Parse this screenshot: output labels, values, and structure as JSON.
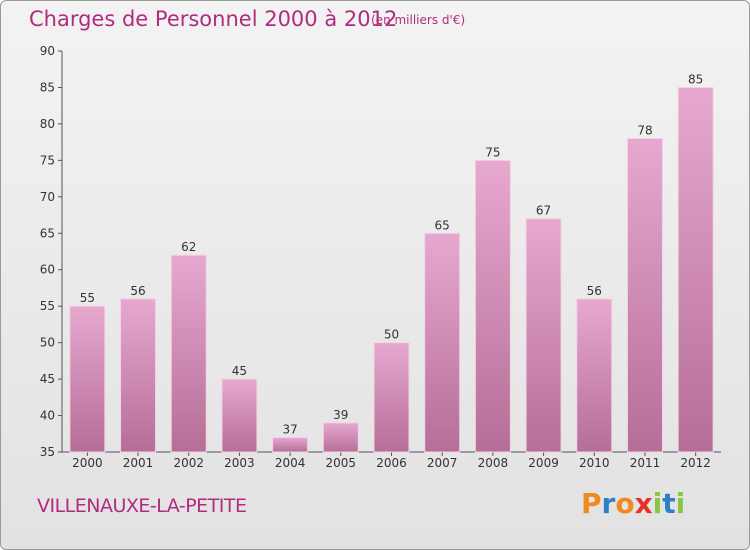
{
  "title": "Charges de Personnel 2000 à 2012",
  "subtitle": "(en milliers d'€)",
  "commune": "VILLENAUXE-LA-PETITE",
  "logo": {
    "text": "Proxiti",
    "letter_colors": [
      "#f08a1c",
      "#2f7fc6",
      "#f08a1c",
      "#e6332a",
      "#8cc63f",
      "#2f7fc6",
      "#8cc63f"
    ]
  },
  "colors": {
    "accent": "#b02c7e",
    "bar_top": "#e7a8cf",
    "bar_bottom": "#b56e97",
    "axis": "#555555"
  },
  "chart_data": {
    "type": "bar",
    "categories": [
      "2000",
      "2001",
      "2002",
      "2003",
      "2004",
      "2005",
      "2006",
      "2007",
      "2008",
      "2009",
      "2010",
      "2011",
      "2012"
    ],
    "values": [
      55,
      56,
      62,
      45,
      37,
      39,
      50,
      65,
      75,
      67,
      56,
      78,
      85
    ],
    "ylim": [
      35,
      90
    ],
    "yticks": [
      35,
      40,
      45,
      50,
      55,
      60,
      65,
      70,
      75,
      80,
      85,
      90
    ],
    "grid": false,
    "data_labels": true
  }
}
